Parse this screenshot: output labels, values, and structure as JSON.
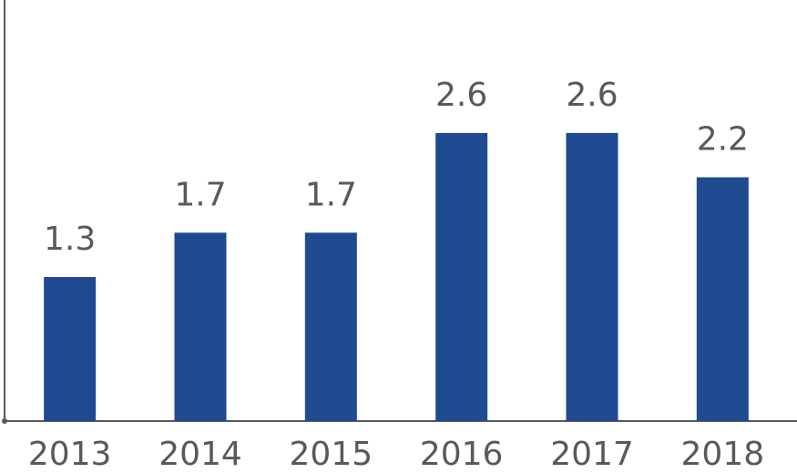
{
  "chart_data": {
    "type": "bar",
    "categories": [
      "2013",
      "2014",
      "2015",
      "2016",
      "2017",
      "2018"
    ],
    "values": [
      1.3,
      1.7,
      1.7,
      2.6,
      2.6,
      2.2
    ],
    "color": "#1f4a8f",
    "ylim": [
      0,
      3.8
    ]
  }
}
